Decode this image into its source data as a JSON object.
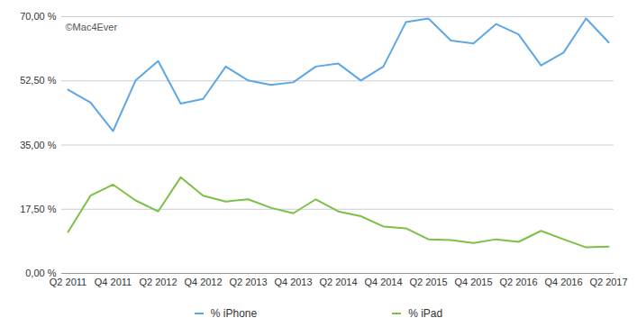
{
  "chart_data": {
    "type": "line",
    "categories": [
      "Q2 2011",
      null,
      "Q4 2011",
      null,
      "Q2 2012",
      null,
      "Q4 2012",
      null,
      "Q2 2013",
      null,
      "Q4 2013",
      null,
      "Q2 2014",
      null,
      "Q4 2014",
      null,
      "Q2 2015",
      null,
      "Q4 2015",
      null,
      "Q2 2016",
      null,
      "Q4 2016",
      null,
      "Q2 2017"
    ],
    "series": [
      {
        "name": "% iPhone",
        "color": "#5ea7e6",
        "values": [
          50.1,
          46.6,
          38.8,
          52.6,
          57.9,
          46.3,
          47.6,
          56.4,
          52.6,
          51.4,
          52.1,
          56.4,
          57.2,
          52.6,
          56.4,
          68.5,
          69.5,
          63.5,
          62.7,
          68.0,
          65.2,
          56.7,
          60.2,
          69.5,
          63.0
        ]
      },
      {
        "name": "% iPad",
        "color": "#7cc046",
        "values": [
          11.3,
          21.2,
          24.2,
          19.9,
          16.9,
          26.2,
          21.2,
          19.6,
          20.2,
          17.9,
          16.4,
          20.2,
          16.9,
          15.6,
          12.8,
          12.3,
          9.3,
          9.1,
          8.3,
          9.3,
          8.6,
          11.6,
          9.3,
          7.1,
          7.3
        ]
      }
    ],
    "ylim": [
      0,
      70
    ],
    "yticks": [
      {
        "value": 0,
        "label": "0,00 %"
      },
      {
        "value": 17.5,
        "label": "17,50 %"
      },
      {
        "value": 35,
        "label": "35,00 %"
      },
      {
        "value": 52.5,
        "label": "52,50 %"
      },
      {
        "value": 70,
        "label": "70,00 %"
      }
    ],
    "grid": true,
    "legend": "bottom",
    "annotations": [
      {
        "text": "©Mac4Ever"
      }
    ]
  }
}
